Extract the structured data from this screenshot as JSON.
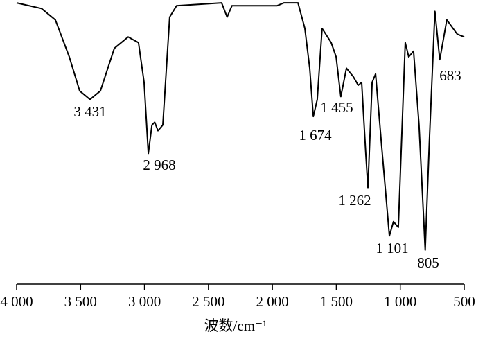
{
  "chart_data": {
    "type": "line",
    "x_label": "波数/cm⁻¹",
    "x": [
      4000,
      3805,
      3697,
      3588,
      3507,
      3426,
      3345,
      3236,
      3128,
      3047,
      3003,
      2970,
      2942,
      2920,
      2895,
      2857,
      2803,
      2749,
      2397,
      2354,
      2316,
      1963,
      1909,
      1800,
      1746,
      1708,
      1680,
      1649,
      1611,
      1540,
      1502,
      1465,
      1421,
      1367,
      1329,
      1302,
      1270,
      1253,
      1220,
      1193,
      1150,
      1085,
      1053,
      1015,
      961,
      934,
      896,
      853,
      805,
      772,
      729,
      691,
      636,
      555,
      500
    ],
    "series": [
      {
        "color": "#000000",
        "values": [
          99,
          97,
          93,
          80,
          68,
          65,
          68,
          83,
          87,
          85,
          71,
          46,
          56,
          57,
          54,
          56,
          94,
          98,
          99,
          94,
          98,
          98,
          99,
          99,
          90,
          76,
          59,
          65,
          90,
          85,
          80,
          66,
          76,
          73,
          70,
          71,
          46,
          34,
          71,
          74,
          51,
          17,
          22,
          20,
          85,
          80,
          82,
          56,
          12,
          51,
          96,
          79,
          93,
          88,
          87
        ]
      }
    ],
    "xlim": [
      4000,
      500
    ],
    "ylim": [
      0,
      100
    ],
    "xticks": [
      {
        "value": 4000,
        "label": "4 000"
      },
      {
        "value": 3500,
        "label": "3 500"
      },
      {
        "value": 3000,
        "label": "3 000"
      },
      {
        "value": 2500,
        "label": "2 500"
      },
      {
        "value": 2000,
        "label": "2 000"
      },
      {
        "value": 1500,
        "label": "1 500"
      },
      {
        "value": 1000,
        "label": "1 000"
      },
      500
    ],
    "annotations": [
      "3 431",
      "2 968",
      "1 674",
      "1 455",
      "1 262",
      "1 101",
      "805",
      "683"
    ]
  }
}
